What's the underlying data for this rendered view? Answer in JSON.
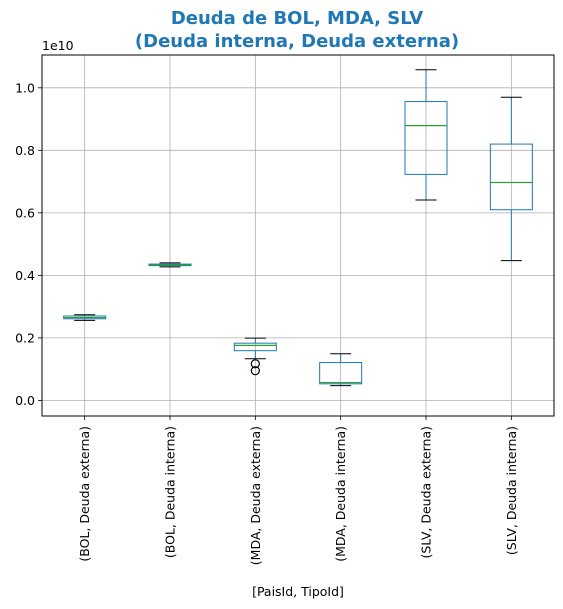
{
  "chart_data": {
    "type": "boxplot",
    "title_line1": "Deuda de BOL, MDA, SLV",
    "title_line2": "(Deuda interna, Deuda externa)",
    "title_color": "#1f77b4",
    "xlabel": "[PaisId, TipoId]",
    "ylabel": "",
    "y_multiplier_label": "1e10",
    "ylim": [
      -500000000.0,
      11050000000.0
    ],
    "y_ticks": [
      0.0,
      2000000000.0,
      4000000000.0,
      6000000000.0,
      8000000000.0,
      10000000000.0
    ],
    "y_tick_labels": [
      "0.0",
      "0.2",
      "0.4",
      "0.6",
      "0.8",
      "1.0"
    ],
    "grid": true,
    "box_color": "#1f77b4",
    "median_color": "#2ca02c",
    "categories": [
      "(BOL, Deuda externa)",
      "(BOL, Deuda interna)",
      "(MDA, Deuda externa)",
      "(MDA, Deuda interna)",
      "(SLV, Deuda externa)",
      "(SLV, Deuda interna)"
    ],
    "boxes": [
      {
        "whislo": 2560000000.0,
        "q1": 2610000000.0,
        "med": 2650000000.0,
        "q3": 2700000000.0,
        "whishi": 2740000000.0,
        "fliers": []
      },
      {
        "whislo": 4270000000.0,
        "q1": 4310000000.0,
        "med": 4330000000.0,
        "q3": 4360000000.0,
        "whishi": 4400000000.0,
        "fliers": []
      },
      {
        "whislo": 1330000000.0,
        "q1": 1590000000.0,
        "med": 1760000000.0,
        "q3": 1830000000.0,
        "whishi": 1990000000.0,
        "fliers": [
          1170000000.0,
          950000000.0
        ]
      },
      {
        "whislo": 470000000.0,
        "q1": 530000000.0,
        "med": 570000000.0,
        "q3": 1210000000.0,
        "whishi": 1490000000.0,
        "fliers": []
      },
      {
        "whislo": 6410000000.0,
        "q1": 7230000000.0,
        "med": 8790000000.0,
        "q3": 9560000000.0,
        "whishi": 10580000000.0,
        "fliers": []
      },
      {
        "whislo": 4470000000.0,
        "q1": 6100000000.0,
        "med": 6970000000.0,
        "q3": 8200000000.0,
        "whishi": 9700000000.0,
        "fliers": []
      }
    ]
  }
}
